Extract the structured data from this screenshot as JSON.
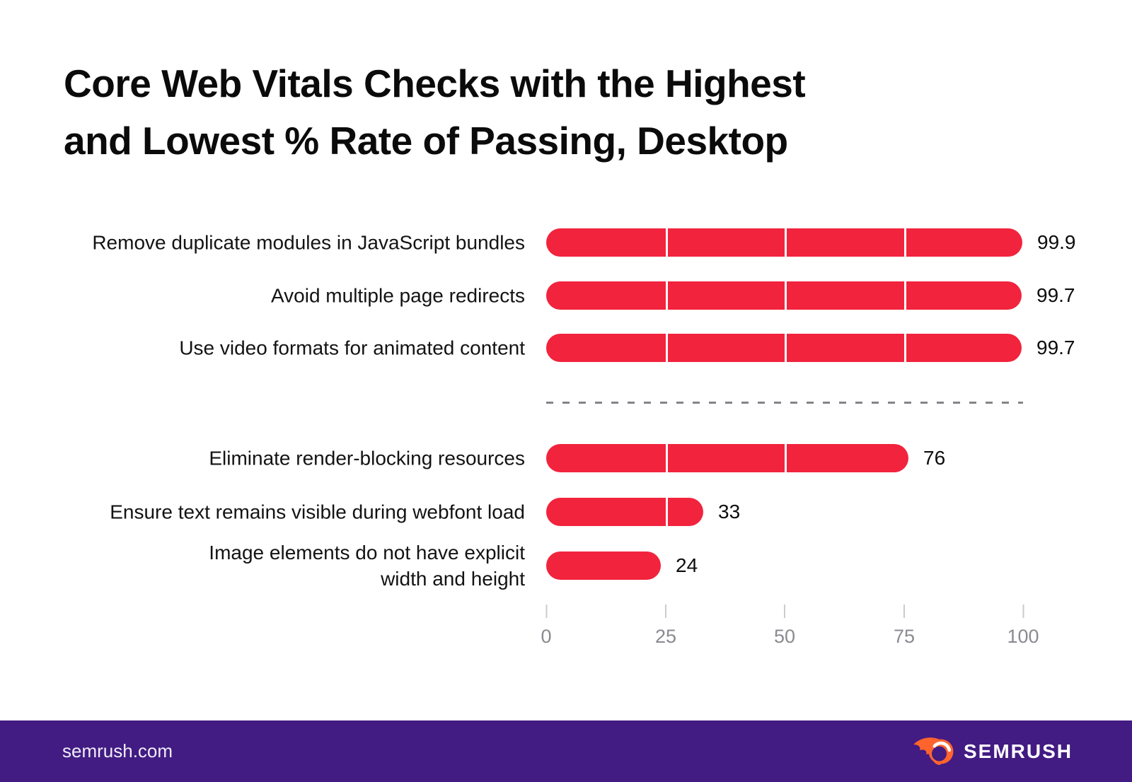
{
  "title": {
    "line1": "Core Web Vitals Checks with the Highest",
    "line2": "and Lowest % Rate of Passing, Desktop"
  },
  "chart_data": {
    "type": "bar",
    "orientation": "horizontal",
    "title": "Core Web Vitals Checks with the Highest and Lowest % Rate of Passing, Desktop",
    "categories": [
      "Remove duplicate modules in JavaScript bundles",
      "Avoid multiple page redirects",
      "Use video formats for animated content",
      "Eliminate render-blocking resources",
      "Ensure text remains visible during webfont load",
      "Image elements do not have explicit width and height"
    ],
    "values": [
      99.9,
      99.7,
      99.7,
      76,
      33,
      24
    ],
    "value_labels": [
      "99.9",
      "99.7",
      "99.7",
      "76",
      "33",
      "24"
    ],
    "row_label_lines": [
      [
        "Remove duplicate modules in JavaScript bundles"
      ],
      [
        "Avoid multiple page redirects"
      ],
      [
        "Use video formats for animated content"
      ],
      [
        "Eliminate render-blocking resources"
      ],
      [
        "Ensure text remains visible during webfont load"
      ],
      [
        "Image elements do not have explicit",
        "width and height"
      ]
    ],
    "xlabel": "",
    "ylabel": "",
    "xlim": [
      0,
      100
    ],
    "x_ticks": [
      0,
      25,
      50,
      75,
      100
    ],
    "x_tick_labels": [
      "0",
      "25",
      "50",
      "75",
      "100"
    ],
    "bar_color": "#F2233D",
    "bar_separator_color": "#FFFFFF",
    "legend": "none",
    "grid": "off",
    "group_divider": "dashed horizontal line separating top 3 (highest % passing) from bottom 3 (lowest % passing)"
  },
  "footer": {
    "site": "semrush.com",
    "brand": "SEMRUSH",
    "background_color": "#421B83",
    "flame_color": "#FF642D"
  }
}
